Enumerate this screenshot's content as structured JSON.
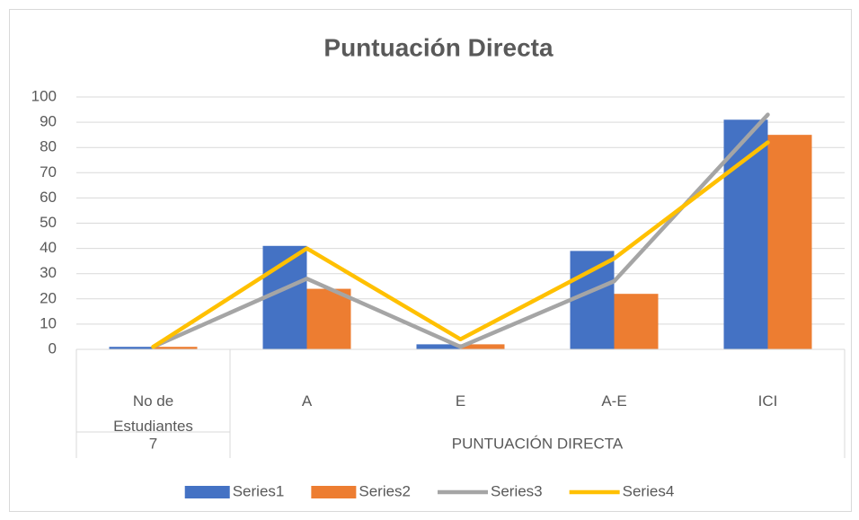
{
  "chart_data": {
    "type": "bar",
    "title": "Puntuación Directa",
    "categories": [
      "No de Estudiantes",
      "A",
      "E",
      "A-E",
      "ICI"
    ],
    "groups": [
      {
        "label": "7",
        "span": 1
      },
      {
        "label": "PUNTUACIÓN DIRECTA",
        "span": 4
      }
    ],
    "series": [
      {
        "name": "Series1",
        "type": "bar",
        "color": "#4472c4",
        "values": [
          1,
          41,
          2,
          39,
          91
        ]
      },
      {
        "name": "Series2",
        "type": "bar",
        "color": "#ed7d31",
        "values": [
          1,
          24,
          2,
          22,
          85
        ]
      },
      {
        "name": "Series3",
        "type": "line",
        "color": "#a5a5a5",
        "values": [
          1,
          28,
          1,
          27,
          93
        ]
      },
      {
        "name": "Series4",
        "type": "line",
        "color": "#ffc000",
        "values": [
          1,
          40,
          4,
          36,
          82
        ]
      }
    ],
    "ylim": [
      0,
      100
    ],
    "yticks": [
      0,
      10,
      20,
      30,
      40,
      50,
      60,
      70,
      80,
      90,
      100
    ],
    "grid": true,
    "legend": "bottom"
  }
}
